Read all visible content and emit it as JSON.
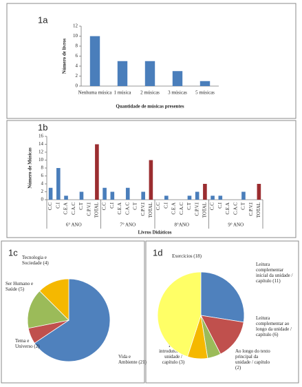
{
  "chart_data": [
    {
      "type": "bar",
      "panel": "1a",
      "categories": [
        "Nenhuma música",
        "1 música",
        "2 músicas",
        "3 músicas",
        "5 músicas"
      ],
      "values": [
        10,
        5,
        5,
        3,
        1
      ],
      "color": "#4a7ebb",
      "ylim": [
        0,
        12
      ],
      "yticks": [
        0,
        2,
        4,
        6,
        8,
        10,
        12
      ],
      "y_label": "Número de livros",
      "x_label": "Quantidade  de músicas presentes"
    },
    {
      "type": "grouped-bar",
      "panel": "1b",
      "groups": [
        {
          "name": "6° ANO",
          "categories": [
            "C.C",
            "C.I",
            "C.E.A",
            "C.A.C",
            "C.T",
            "C.P.V.I",
            "TOTAL"
          ],
          "values": [
            3,
            8,
            1,
            0,
            2,
            0,
            14
          ],
          "colors": [
            "#4a7ebb",
            "#4a7ebb",
            "#4a7ebb",
            "#4a7ebb",
            "#4a7ebb",
            "#4a7ebb",
            "#9b2d30"
          ]
        },
        {
          "name": "7° ANO",
          "categories": [
            "C.C",
            "C.I",
            "C.E.A",
            "C.A.C",
            "C.T",
            "C.P.V.I",
            "TOTAL"
          ],
          "values": [
            3,
            2,
            0,
            3,
            0,
            2,
            10
          ],
          "colors": [
            "#4a7ebb",
            "#4a7ebb",
            "#4a7ebb",
            "#4a7ebb",
            "#4a7ebb",
            "#4a7ebb",
            "#9b2d30"
          ]
        },
        {
          "name": "8°ANO",
          "categories": [
            "C.C",
            "C.I",
            "C.E.A",
            "C.A.C",
            "C.T",
            "C.P.V.I",
            "TOTAL"
          ],
          "values": [
            0,
            1,
            0,
            0,
            1,
            2,
            4
          ],
          "colors": [
            "#4a7ebb",
            "#4a7ebb",
            "#4a7ebb",
            "#4a7ebb",
            "#4a7ebb",
            "#4a7ebb",
            "#9b2d30"
          ]
        },
        {
          "name": "9° ANO",
          "categories": [
            "C.C",
            "C.I",
            "C.E.A",
            "C.A.C",
            "C.T",
            "C.P.V.I",
            "TOTAL"
          ],
          "values": [
            1,
            1,
            0,
            0,
            2,
            0,
            4
          ],
          "colors": [
            "#4a7ebb",
            "#4a7ebb",
            "#4a7ebb",
            "#4a7ebb",
            "#4a7ebb",
            "#4a7ebb",
            "#9b2d30"
          ]
        }
      ],
      "ylim": [
        0,
        16
      ],
      "yticks": [
        0,
        2,
        4,
        6,
        8,
        10,
        12,
        14,
        16
      ],
      "y_label": "Número de Músicas",
      "x_label": "Livros Didáticos"
    },
    {
      "type": "pie",
      "panel": "1c",
      "labels": [
        [
          "Vida e",
          "Ambiente (21)"
        ],
        [
          "Tema e",
          "Universo (2)"
        ],
        [
          "Ser Humano e",
          "Saúde (5)"
        ],
        [
          "Tecnologia e",
          "Sociedade (4)"
        ]
      ],
      "values": [
        21,
        2,
        5,
        4
      ],
      "colors": [
        "#4f81bd",
        "#c0504d",
        "#9bbb59",
        "#f5b800"
      ]
    },
    {
      "type": "pie",
      "panel": "1d",
      "labels": [
        [
          "Leitura",
          "complementar",
          "inicial  da unidade /",
          "capítulo (11)"
        ],
        [
          "Leitura",
          "complementar ao",
          "longo  da unidade /",
          "capítulo (6)"
        ],
        [
          "Ao longo do texto",
          "principal da",
          "unidade / capítulo",
          "(2)"
        ],
        [
          "Texto",
          "introdutório da",
          "unidade /",
          "capítulo (3)"
        ],
        [
          "Exercícios (18)"
        ]
      ],
      "values": [
        11,
        6,
        2,
        3,
        18
      ],
      "colors": [
        "#4f81bd",
        "#c0504d",
        "#9bbb59",
        "#f5b800",
        "#ffff66"
      ]
    }
  ]
}
